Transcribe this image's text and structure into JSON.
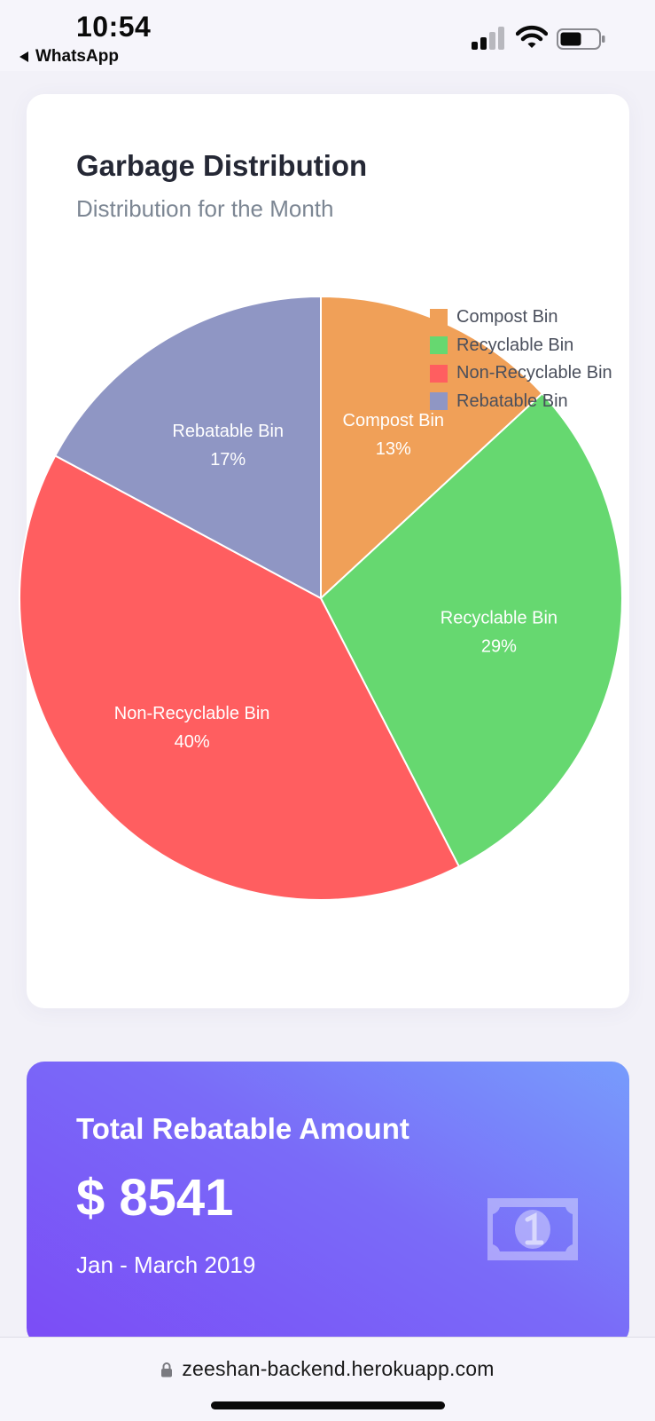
{
  "status_bar": {
    "time": "10:54",
    "back_app": "WhatsApp",
    "icons": [
      "signal-icon",
      "wifi-icon",
      "battery-icon"
    ]
  },
  "chart_card": {
    "title": "Garbage Distribution",
    "subtitle": "Distribution for the Month"
  },
  "chart_data": {
    "type": "pie",
    "title": "Garbage Distribution",
    "subtitle": "Distribution for the Month",
    "legend_position": "top-right",
    "slices": [
      {
        "label": "Compost Bin",
        "value": 13,
        "display": "13%",
        "color": "#f0a058"
      },
      {
        "label": "Recyclable Bin",
        "value": 29,
        "display": "29%",
        "color": "#66d870"
      },
      {
        "label": "Non-Recyclable Bin",
        "value": 40,
        "display": "40%",
        "color": "#ff5e60"
      },
      {
        "label": "Rebatable Bin",
        "value": 17,
        "display": "17%",
        "color": "#8f96c4"
      }
    ]
  },
  "rebate_card": {
    "title": "Total Rebatable Amount",
    "amount": "$ 8541",
    "period": "Jan - March 2019",
    "icon": "money-bill-icon",
    "gradient": [
      "#7b4cf6",
      "#779cfc"
    ]
  },
  "url_bar": {
    "url": "zeeshan-backend.herokuapp.com",
    "icon": "lock-icon"
  }
}
